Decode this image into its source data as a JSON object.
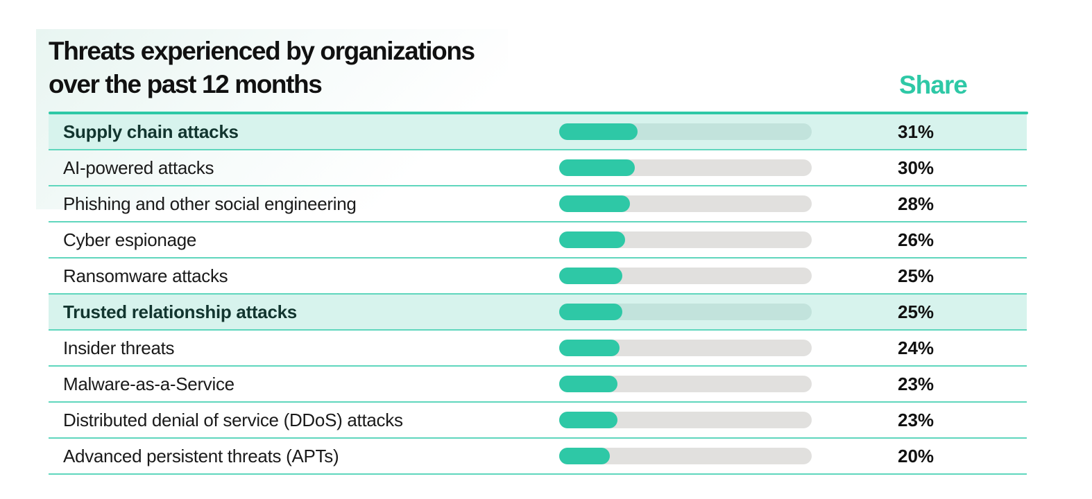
{
  "chart_data": {
    "type": "bar",
    "title": "Threats experienced by organizations over the past 12 months",
    "title_lines": [
      "Threats experienced by organizations",
      "over the past 12 months"
    ],
    "value_header": "Share",
    "scale_max_percent": 100,
    "colors": {
      "accent": "#2ec8a6",
      "track": "#e1e0de",
      "highlight_row": "#d7f3ed"
    },
    "categories": [
      "Supply chain attacks",
      "AI-powered attacks",
      "Phishing and other social engineering",
      "Cyber espionage",
      "Ransomware attacks",
      "Trusted relationship attacks",
      "Insider threats",
      "Malware-as-a-Service",
      "Distributed denial of service (DDoS) attacks",
      "Advanced persistent threats (APTs)"
    ],
    "values": [
      31,
      30,
      28,
      26,
      25,
      25,
      24,
      23,
      23,
      20
    ],
    "value_labels": [
      "31%",
      "30%",
      "28%",
      "26%",
      "25%",
      "25%",
      "24%",
      "23%",
      "23%",
      "20%"
    ],
    "highlighted": [
      true,
      false,
      false,
      false,
      false,
      true,
      false,
      false,
      false,
      false
    ]
  }
}
